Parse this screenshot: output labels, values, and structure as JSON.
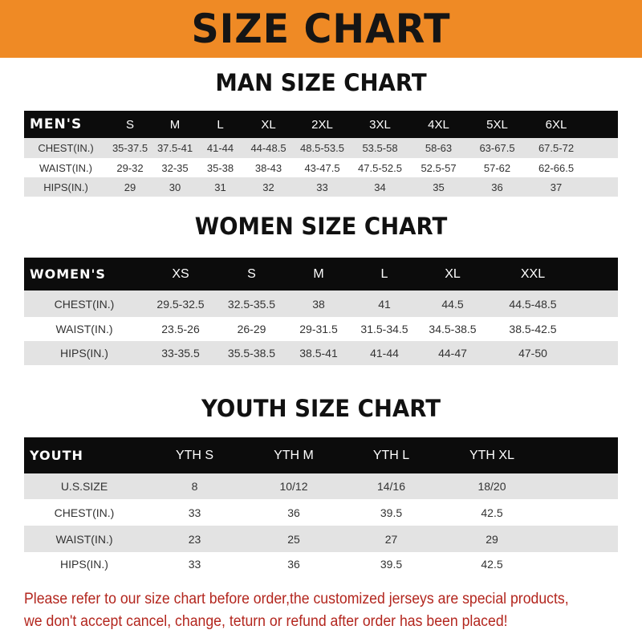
{
  "banner_title": "SIZE CHART",
  "men": {
    "title": "MAN SIZE CHART",
    "header": [
      "MEN'S",
      "S",
      "M",
      "L",
      "XL",
      "2XL",
      "3XL",
      "4XL",
      "5XL",
      "6XL"
    ],
    "rows": [
      [
        "CHEST(IN.)",
        "35-37.5",
        "37.5-41",
        "41-44",
        "44-48.5",
        "48.5-53.5",
        "53.5-58",
        "58-63",
        "63-67.5",
        "67.5-72"
      ],
      [
        "WAIST(IN.)",
        "29-32",
        "32-35",
        "35-38",
        "38-43",
        "43-47.5",
        "47.5-52.5",
        "52.5-57",
        "57-62",
        "62-66.5"
      ],
      [
        "HIPS(IN.)",
        "29",
        "30",
        "31",
        "32",
        "33",
        "34",
        "35",
        "36",
        "37"
      ]
    ]
  },
  "women": {
    "title": "WOMEN SIZE CHART",
    "header": [
      "WOMEN'S",
      "XS",
      "S",
      "M",
      "L",
      "XL",
      "XXL"
    ],
    "rows": [
      [
        "CHEST(IN.)",
        "29.5-32.5",
        "32.5-35.5",
        "38",
        "41",
        "44.5",
        "44.5-48.5"
      ],
      [
        "WAIST(IN.)",
        "23.5-26",
        "26-29",
        "29-31.5",
        "31.5-34.5",
        "34.5-38.5",
        "38.5-42.5"
      ],
      [
        "HIPS(IN.)",
        "33-35.5",
        "35.5-38.5",
        "38.5-41",
        "41-44",
        "44-47",
        "47-50"
      ]
    ]
  },
  "youth": {
    "title": "YOUTH SIZE CHART",
    "header": [
      "YOUTH",
      "YTH S",
      "YTH M",
      "YTH L",
      "YTH XL"
    ],
    "rows": [
      [
        "U.S.SIZE",
        "8",
        "10/12",
        "14/16",
        "18/20"
      ],
      [
        "CHEST(IN.)",
        "33",
        "36",
        "39.5",
        "42.5"
      ],
      [
        "WAIST(IN.)",
        "23",
        "25",
        "27",
        "29"
      ],
      [
        "HIPS(IN.)",
        "33",
        "36",
        "39.5",
        "42.5"
      ]
    ]
  },
  "note": {
    "line1": "Please refer to our size chart before order,the customized jerseys are special products,",
    "line2": "we don't accept cancel, change, teturn or refund after order has been placed!"
  },
  "colors": {
    "banner": "#ef8a25",
    "header": "#0c0c0c",
    "stripe": "#e3e3e3",
    "note": "#b3261e"
  }
}
